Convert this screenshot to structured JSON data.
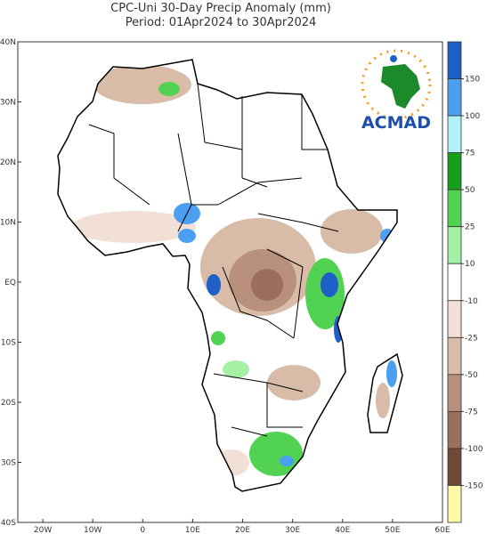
{
  "header": {
    "title": "CPC-Uni 30-Day Precip Anomaly (mm)",
    "period": "Period: 01Apr2024 to 30Apr2024"
  },
  "map": {
    "lat_labels": [
      "40N",
      "30N",
      "20N",
      "10N",
      "EQ",
      "10S",
      "20S",
      "30S",
      "40S"
    ],
    "lon_labels": [
      "20W",
      "10W",
      "0",
      "10E",
      "20E",
      "30E",
      "40E",
      "50E",
      "60E"
    ]
  },
  "colorbar": {
    "labels": [
      150,
      100,
      75,
      50,
      25,
      10,
      -10,
      -25,
      -50,
      -75,
      -100,
      -150
    ],
    "colors": [
      "#1f5fc8",
      "#4b9ff0",
      "#b4f0fa",
      "#17a017",
      "#52d252",
      "#a4f0a4",
      "#ffffff",
      "#f2e0d6",
      "#d8bca8",
      "#b8907c",
      "#9a705c",
      "#6e4a36",
      "#fffaa8"
    ]
  },
  "logo": {
    "text": "ACMAD"
  }
}
